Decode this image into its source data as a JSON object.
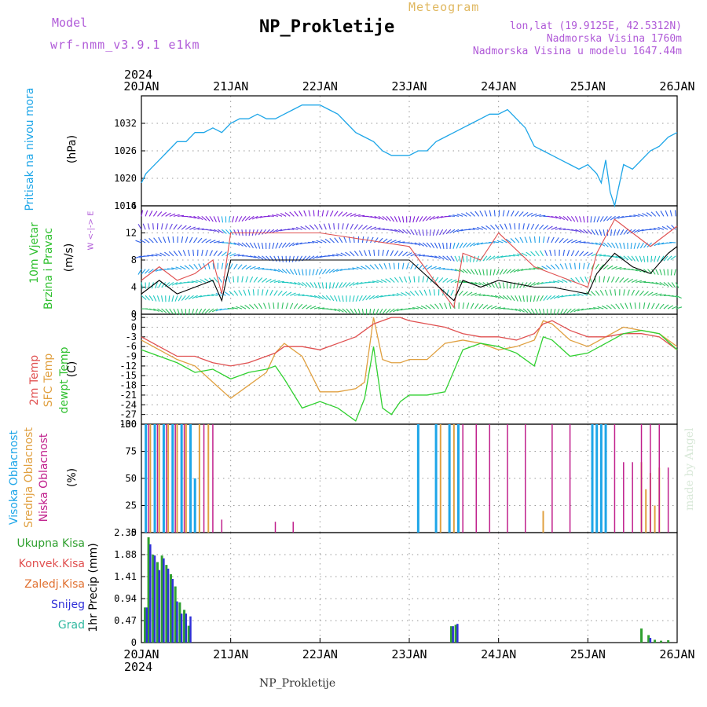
{
  "header": {
    "model_label": "Model",
    "model_version": "wrf-nmm_v3.9.1  e1km",
    "title": "NP_Prokletije",
    "subtitle": "Meteogram",
    "location": "lon,lat (19.9125E, 42.5312N)",
    "altitude": "Nadmorska Visina 1760m",
    "model_altitude": "Nadmorska Visina u modelu 1647.44m",
    "footer": "NP_Prokletije",
    "credit": "made by Angel"
  },
  "time_axis": {
    "year": "2024",
    "labels": [
      "20JAN",
      "21JAN",
      "22JAN",
      "23JAN",
      "24JAN",
      "25JAN",
      "26JAN"
    ]
  },
  "colors": {
    "pressure": "#1ea6e8",
    "temp2m": "#e05050",
    "sfc": "#e0a040",
    "dewpt": "#30d030",
    "high_cloud": "#1ea6e8",
    "mid_cloud": "#e0a040",
    "low_cloud": "#c0208c",
    "total_precip": "#30a030",
    "snow": "#3030d8"
  },
  "panels": {
    "pressure": {
      "ylabel_name": "Pritisak na nivou mora",
      "ylabel_unit": "(hPa)"
    },
    "wind": {
      "ylabel_name1": "10m Vjetar",
      "ylabel_name2": "Brzina i Pravac",
      "ylabel_unit": "(m/s)",
      "compass": "W <-|-> E"
    },
    "temp": {
      "label_2m": "2m Temp",
      "label_sfc": "SFC Temp",
      "label_dew": "dewpt Temp",
      "ylabel_unit": "(C)"
    },
    "cloud": {
      "label_high": "Visoka Oblacnost",
      "label_mid": "Srednja Oblacnost",
      "label_low": "Niska Oblacnost",
      "ylabel_unit": "(%)"
    },
    "precip": {
      "legend": [
        "Ukupna Kisa",
        "Konvek.Kisa",
        "Zaledj.Kisa",
        "Snijeg",
        "Grad"
      ],
      "ylabel": "1hr Precip (mm)"
    }
  },
  "chart_data": [
    {
      "type": "line",
      "name": "pressure",
      "ylim": [
        1014,
        1038
      ],
      "yticks": [
        1014,
        1020,
        1026,
        1032
      ],
      "x_days": [
        0,
        0.05,
        0.1,
        0.2,
        0.3,
        0.4,
        0.5,
        0.6,
        0.7,
        0.8,
        0.9,
        1.0,
        1.1,
        1.2,
        1.3,
        1.4,
        1.5,
        1.6,
        1.7,
        1.8,
        1.9,
        2.0,
        2.1,
        2.2,
        2.3,
        2.4,
        2.5,
        2.6,
        2.7,
        2.8,
        2.9,
        3.0,
        3.1,
        3.2,
        3.3,
        3.4,
        3.5,
        3.6,
        3.7,
        3.8,
        3.9,
        4.0,
        4.1,
        4.2,
        4.3,
        4.4,
        4.5,
        4.6,
        4.7,
        4.8,
        4.9,
        5.0,
        5.1,
        5.15,
        5.2,
        5.25,
        5.3,
        5.4,
        5.5,
        5.6,
        5.7,
        5.8,
        5.9,
        6.0
      ],
      "values": [
        1019,
        1021,
        1022,
        1024,
        1026,
        1028,
        1028,
        1030,
        1030,
        1031,
        1030,
        1032,
        1033,
        1033,
        1034,
        1033,
        1033,
        1034,
        1035,
        1036,
        1036,
        1036,
        1035,
        1034,
        1032,
        1030,
        1029,
        1028,
        1026,
        1025,
        1025,
        1025,
        1026,
        1026,
        1028,
        1029,
        1030,
        1031,
        1032,
        1033,
        1034,
        1034,
        1035,
        1033,
        1031,
        1027,
        1026,
        1025,
        1024,
        1023,
        1022,
        1023,
        1021,
        1019,
        1024,
        1017,
        1014,
        1023,
        1022,
        1024,
        1026,
        1027,
        1029,
        1030
      ]
    },
    {
      "type": "line",
      "name": "wind",
      "ylim": [
        0,
        16
      ],
      "yticks": [
        0,
        4,
        8,
        12,
        16
      ],
      "x_days": [
        0,
        0.2,
        0.4,
        0.6,
        0.8,
        0.9,
        1.0,
        1.5,
        2.0,
        2.5,
        3.0,
        3.5,
        3.6,
        3.8,
        4.0,
        4.4,
        4.6,
        5.0,
        5.1,
        5.3,
        5.5,
        5.7,
        5.9,
        6.0
      ],
      "speed": [
        3,
        5,
        3,
        4,
        5,
        2,
        8,
        8,
        8,
        8,
        8,
        2,
        5,
        4,
        5,
        4,
        4,
        3,
        6,
        9,
        7,
        6,
        9,
        10
      ],
      "gust": [
        5,
        7,
        5,
        6,
        8,
        3,
        12,
        12,
        12,
        11,
        10,
        1,
        9,
        8,
        12,
        7,
        6,
        4,
        9,
        14,
        12,
        10,
        12,
        13
      ]
    },
    {
      "type": "line",
      "name": "temperature",
      "ylim": [
        -30,
        4
      ],
      "yticks": [
        -30,
        -27,
        -24,
        -21,
        -18,
        -15,
        -12,
        -9,
        -6,
        -3,
        0,
        3
      ],
      "x_days": [
        0,
        0.2,
        0.4,
        0.6,
        0.8,
        1.0,
        1.2,
        1.4,
        1.5,
        1.6,
        1.8,
        2.0,
        2.2,
        2.4,
        2.5,
        2.6,
        2.7,
        2.8,
        2.9,
        3.0,
        3.2,
        3.4,
        3.6,
        3.8,
        4.0,
        4.2,
        4.4,
        4.5,
        4.6,
        4.8,
        5.0,
        5.2,
        5.4,
        5.6,
        5.8,
        6.0
      ],
      "t2m": [
        -3,
        -6,
        -9,
        -9,
        -11,
        -12,
        -11,
        -9,
        -8,
        -6,
        -6,
        -7,
        -5,
        -3,
        -1,
        1,
        2,
        3,
        3,
        2,
        1,
        0,
        -2,
        -3,
        -3,
        -4,
        -2,
        1,
        2,
        -1,
        -3,
        -3,
        -2,
        -2,
        -3,
        -7
      ],
      "tsfc": [
        -4,
        -7,
        -10,
        -12,
        -17,
        -22,
        -18,
        -14,
        -8,
        -5,
        -9,
        -20,
        -20,
        -19,
        -17,
        3,
        -10,
        -11,
        -11,
        -10,
        -10,
        -5,
        -4,
        -5,
        -7,
        -6,
        -4,
        2,
        1,
        -4,
        -6,
        -3,
        0,
        -1,
        -2,
        -6
      ],
      "tdew": [
        -7,
        -9,
        -11,
        -14,
        -13,
        -16,
        -14,
        -13,
        -12,
        -16,
        -25,
        -23,
        -25,
        -29,
        -22,
        -6,
        -25,
        -27,
        -23,
        -21,
        -21,
        -20,
        -7,
        -5,
        -6,
        -8,
        -12,
        -3,
        -4,
        -9,
        -8,
        -5,
        -2,
        -1,
        -2,
        -7
      ]
    },
    {
      "type": "bar",
      "name": "cloud",
      "ylim": [
        0,
        100
      ],
      "yticks": [
        0,
        25,
        50,
        75,
        100
      ],
      "high": [
        [
          0.05,
          100
        ],
        [
          0.15,
          100
        ],
        [
          0.25,
          100
        ],
        [
          0.35,
          100
        ],
        [
          0.45,
          100
        ],
        [
          0.55,
          100
        ],
        [
          0.6,
          50
        ],
        [
          3.1,
          100
        ],
        [
          3.3,
          100
        ],
        [
          3.45,
          100
        ],
        [
          3.55,
          100
        ],
        [
          5.05,
          100
        ],
        [
          5.1,
          100
        ],
        [
          5.15,
          100
        ],
        [
          5.2,
          100
        ]
      ],
      "mid": [
        [
          0.1,
          100
        ],
        [
          0.2,
          100
        ],
        [
          0.3,
          100
        ],
        [
          0.4,
          100
        ],
        [
          0.5,
          100
        ],
        [
          0.65,
          100
        ],
        [
          0.75,
          100
        ],
        [
          3.35,
          100
        ],
        [
          3.5,
          100
        ],
        [
          4.5,
          20
        ],
        [
          5.6,
          65
        ],
        [
          5.65,
          40
        ],
        [
          5.7,
          55
        ],
        [
          5.75,
          25
        ],
        [
          5.8,
          60
        ]
      ],
      "low": [
        [
          0.08,
          100
        ],
        [
          0.18,
          100
        ],
        [
          0.28,
          100
        ],
        [
          0.38,
          100
        ],
        [
          0.48,
          100
        ],
        [
          0.7,
          100
        ],
        [
          0.8,
          100
        ],
        [
          0.9,
          12
        ],
        [
          1.5,
          10
        ],
        [
          1.7,
          10
        ],
        [
          3.6,
          100
        ],
        [
          3.75,
          100
        ],
        [
          3.9,
          100
        ],
        [
          4.1,
          100
        ],
        [
          4.3,
          100
        ],
        [
          4.6,
          100
        ],
        [
          4.8,
          100
        ],
        [
          5.3,
          100
        ],
        [
          5.4,
          65
        ],
        [
          5.5,
          65
        ],
        [
          5.6,
          100
        ],
        [
          5.7,
          100
        ],
        [
          5.8,
          100
        ],
        [
          5.9,
          60
        ]
      ]
    },
    {
      "type": "bar",
      "name": "precip",
      "ylim": [
        0,
        2.35
      ],
      "yticks": [
        0,
        0.47,
        0.94,
        1.41,
        1.88,
        2.35
      ],
      "total": [
        [
          0.04,
          0.75
        ],
        [
          0.08,
          2.25
        ],
        [
          0.13,
          1.88
        ],
        [
          0.18,
          1.72
        ],
        [
          0.23,
          1.86
        ],
        [
          0.28,
          1.66
        ],
        [
          0.33,
          1.46
        ],
        [
          0.38,
          1.2
        ],
        [
          0.43,
          0.86
        ],
        [
          0.48,
          0.7
        ],
        [
          0.53,
          0.36
        ],
        [
          3.47,
          0.35
        ],
        [
          3.52,
          0.38
        ],
        [
          5.6,
          0.3
        ],
        [
          5.68,
          0.16
        ],
        [
          5.75,
          0.06
        ],
        [
          5.82,
          0.04
        ],
        [
          5.9,
          0.05
        ]
      ],
      "snow": [
        [
          0.04,
          0.75
        ],
        [
          0.08,
          2.1
        ],
        [
          0.13,
          1.86
        ],
        [
          0.18,
          1.55
        ],
        [
          0.23,
          1.8
        ],
        [
          0.28,
          1.58
        ],
        [
          0.33,
          1.36
        ],
        [
          0.38,
          0.88
        ],
        [
          0.43,
          0.62
        ],
        [
          0.48,
          0.62
        ],
        [
          0.53,
          0.56
        ],
        [
          3.47,
          0.35
        ],
        [
          3.52,
          0.4
        ],
        [
          5.68,
          0.1
        ]
      ]
    }
  ]
}
